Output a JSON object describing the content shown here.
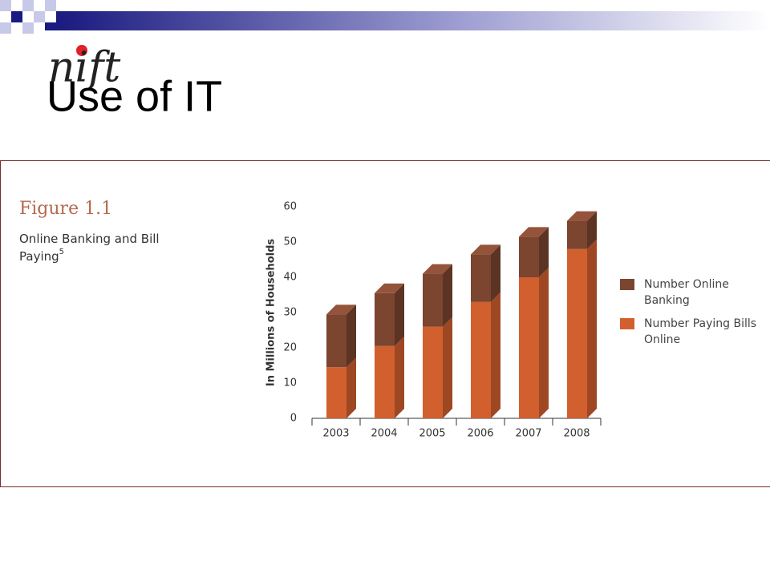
{
  "slide": {
    "logo": "nift",
    "title": "Use of IT"
  },
  "chart_data": {
    "type": "stacked_bar_3d",
    "figure_label": "Figure 1.1",
    "title": "Online Banking and Bill Paying",
    "title_footnote": "5",
    "ylabel": "In Millions of Households",
    "categories": [
      "2003",
      "2004",
      "2005",
      "2006",
      "2007",
      "2008"
    ],
    "series": [
      {
        "name": "Number Online Banking",
        "color": "#7b4530",
        "values": [
          15,
          15,
          15,
          13.5,
          11.5,
          8
        ]
      },
      {
        "name": "Number Paying Bills Online",
        "color": "#d2602f",
        "values": [
          14.5,
          20.5,
          26,
          33,
          40,
          48
        ]
      }
    ],
    "ylim": [
      0,
      60
    ],
    "yticks": [
      0,
      10,
      20,
      30,
      40,
      50,
      60
    ],
    "grid": false,
    "legend": "right"
  }
}
